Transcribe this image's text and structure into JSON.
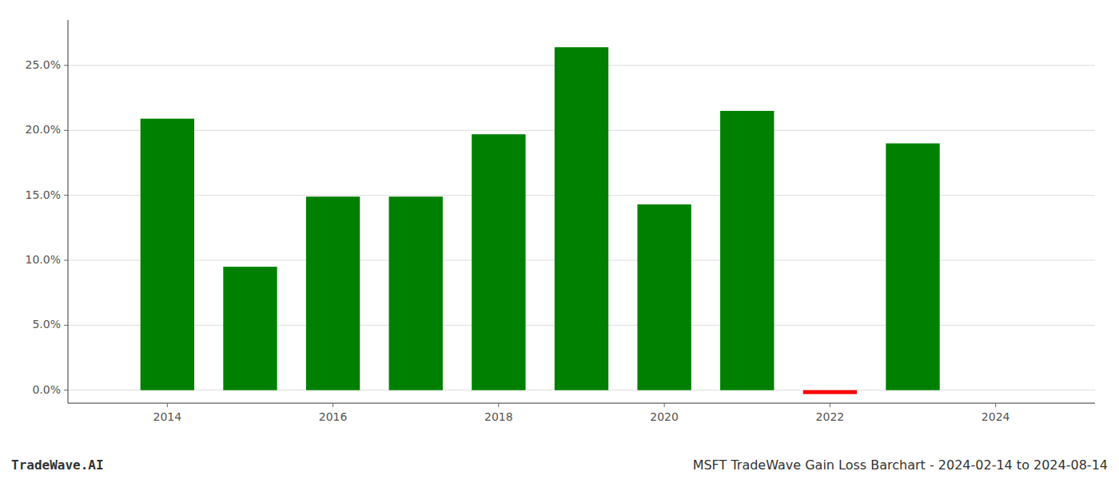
{
  "chart_data": {
    "type": "bar",
    "x": [
      2014,
      2015,
      2016,
      2017,
      2018,
      2019,
      2020,
      2021,
      2022,
      2023
    ],
    "values": [
      0.209,
      0.095,
      0.149,
      0.149,
      0.197,
      0.264,
      0.143,
      0.215,
      -0.003,
      0.19
    ],
    "colors": [
      "#008000",
      "#008000",
      "#008000",
      "#008000",
      "#008000",
      "#008000",
      "#008000",
      "#008000",
      "#ff0000",
      "#008000"
    ],
    "xlim": [
      2012.8,
      2025.2
    ],
    "xticks": [
      2014,
      2016,
      2018,
      2020,
      2022,
      2024
    ],
    "ylim": [
      -0.01,
      0.285
    ],
    "yticks": [
      {
        "value": 0.0,
        "label": "0.0%"
      },
      {
        "value": 0.05,
        "label": "5.0%"
      },
      {
        "value": 0.1,
        "label": "10.0%"
      },
      {
        "value": 0.15,
        "label": "15.0%"
      },
      {
        "value": 0.2,
        "label": "20.0%"
      },
      {
        "value": 0.25,
        "label": "25.0%"
      }
    ],
    "grid": true,
    "annotations": [
      "TradeWave.AI",
      "MSFT TradeWave Gain Loss Barchart - 2024-02-14 to 2024-08-14"
    ]
  }
}
